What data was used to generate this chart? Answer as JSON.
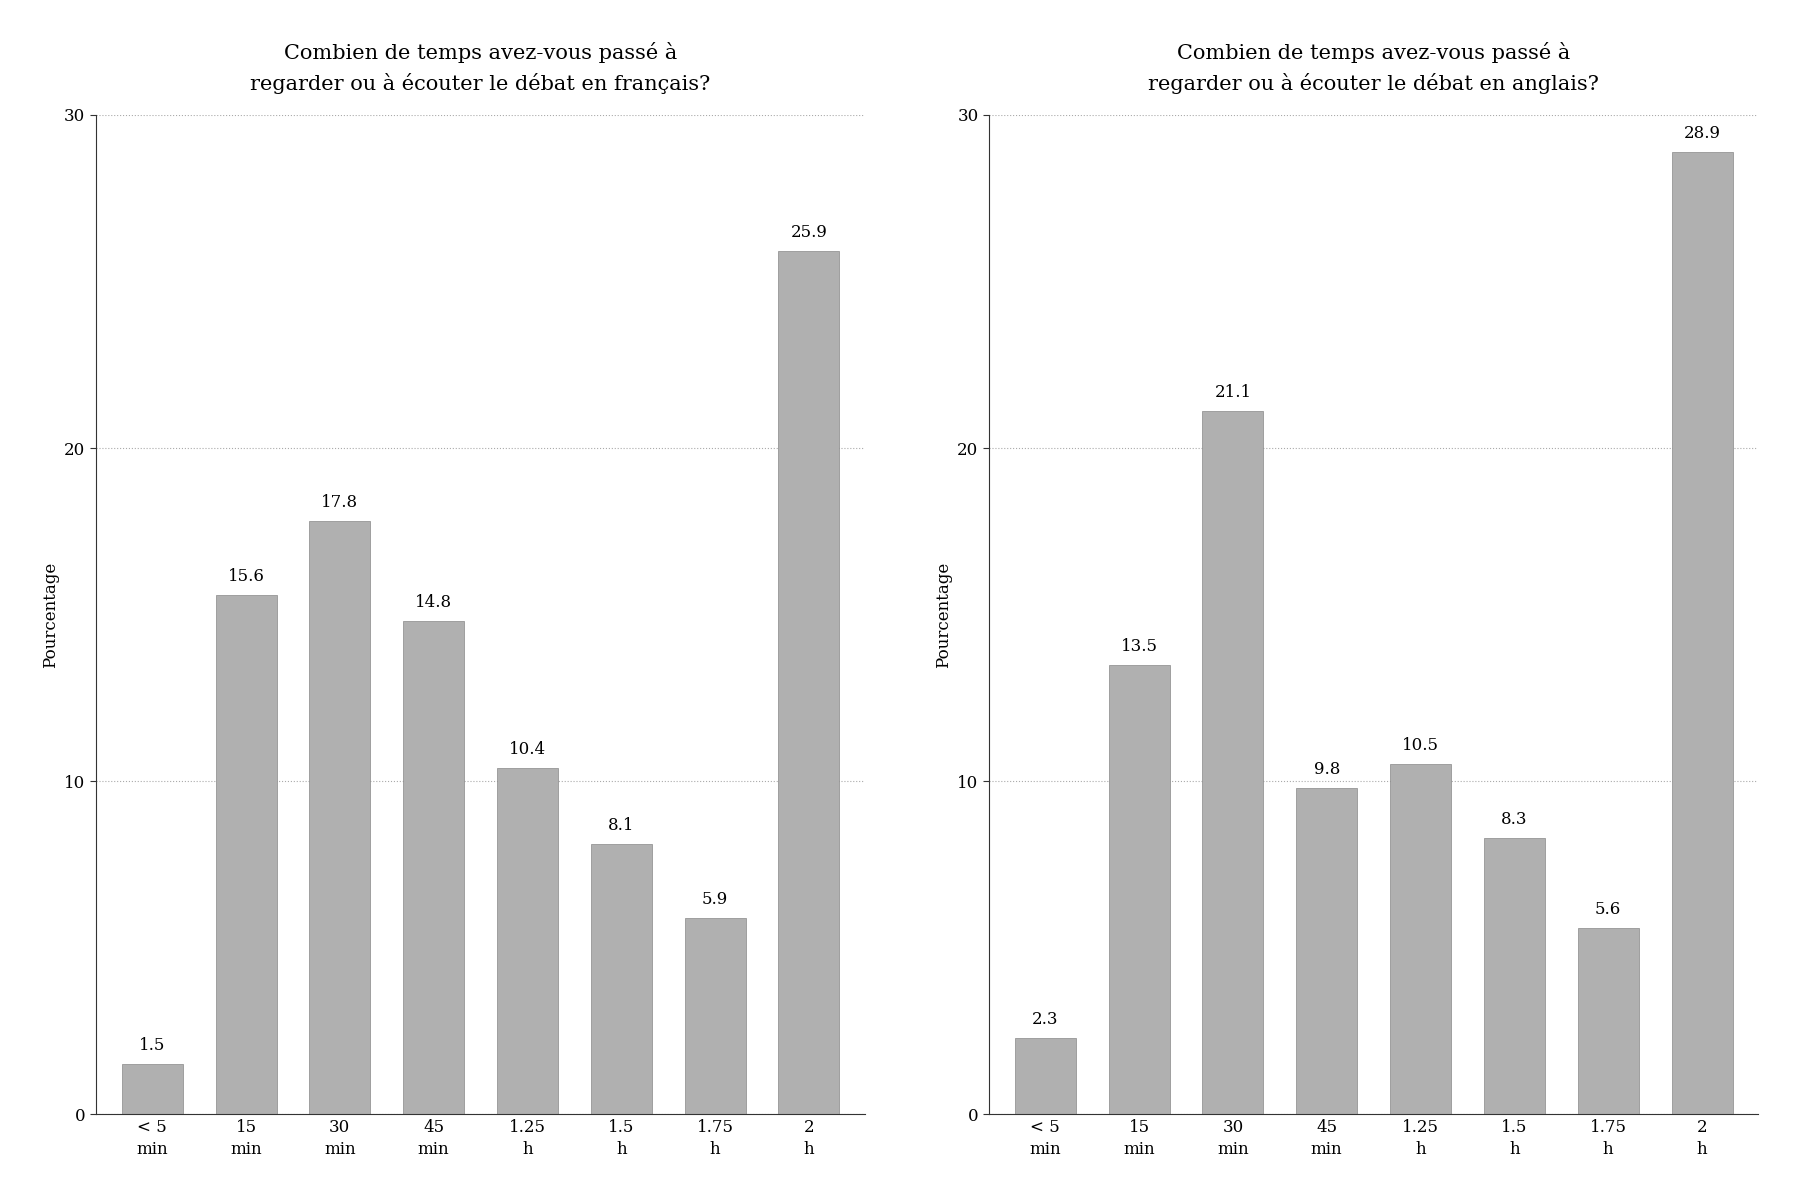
{
  "left_title": "Combien de temps avez-vous passé à\nregarder ou à écouter le débat en français?",
  "right_title": "Combien de temps avez-vous passé à\nregarder ou à écouter le débat en anglais?",
  "categories": [
    "< 5\nmin",
    "15\nmin",
    "30\nmin",
    "45\nmin",
    "1.25\nh",
    "1.5\nh",
    "1.75\nh",
    "2\nh"
  ],
  "left_values": [
    1.5,
    15.6,
    17.8,
    14.8,
    10.4,
    8.1,
    5.9,
    25.9
  ],
  "right_values": [
    2.3,
    13.5,
    21.1,
    9.8,
    10.5,
    8.3,
    5.6,
    28.9
  ],
  "bar_color": "#b0b0b0",
  "bar_edge_color": "#888888",
  "ylabel": "Pourcentage",
  "ylim": [
    0,
    30
  ],
  "yticks": [
    0,
    10,
    20,
    30
  ],
  "background_color": "#ffffff",
  "grid_color": "#aaaaaa",
  "title_fontsize": 15,
  "label_fontsize": 12,
  "tick_fontsize": 12,
  "value_fontsize": 12
}
